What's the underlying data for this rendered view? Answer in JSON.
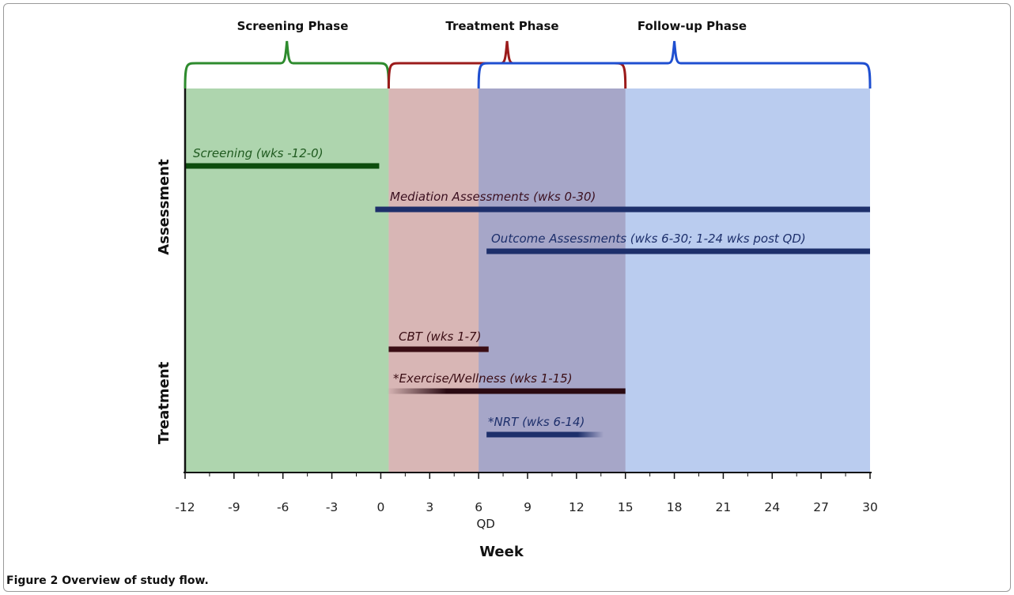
{
  "caption": {
    "text": "Figure 2 Overview of study flow."
  },
  "chart_data": {
    "type": "timeline",
    "xlabel": "Week",
    "x_ticks": [
      -12,
      -9,
      -6,
      -3,
      0,
      3,
      6,
      9,
      12,
      15,
      18,
      21,
      24,
      27,
      30
    ],
    "xlim": [
      -12,
      30
    ],
    "marker": {
      "label": "QD",
      "week": 6
    },
    "row_labels": [
      "Assessment",
      "Treatment"
    ],
    "phases": [
      {
        "name": "Screening Phase",
        "start": -12,
        "end": 0,
        "color": "#6bb36b",
        "bracket_color": "#2e8b2e"
      },
      {
        "name": "Treatment Phase",
        "start": 0,
        "end": 15,
        "color": "#b87a78",
        "bracket_color": "#9b1b1b"
      },
      {
        "name": "Follow-up Phase",
        "start": 6,
        "end": 30,
        "color": "#6f94de",
        "bracket_color": "#1f4fd0"
      }
    ],
    "bars": [
      {
        "label": "Screening (wks -12-0)",
        "start": -12,
        "end": 0,
        "row": "Assessment",
        "color": "#0d4d0d",
        "label_color": "#1f5a1f"
      },
      {
        "label": "Mediation Assessments (wks 0-30)",
        "start": 0,
        "end": 30,
        "row": "Assessment",
        "color": "#1d2f6b",
        "label_color": "#3b1020"
      },
      {
        "label": "Outcome Assessments (wks 6-30; 1-24 wks post QD)",
        "start": 6,
        "end": 30,
        "row": "Assessment",
        "color": "#1d2f6b",
        "label_color": "#1d2f6b"
      },
      {
        "label": "CBT (wks 1-7)",
        "start": 1,
        "end": 7,
        "row": "Treatment",
        "color": "#3a0d14",
        "label_color": "#3a0d14"
      },
      {
        "label": "*Exercise/Wellness (wks 1-15)",
        "start": 1,
        "end": 15,
        "row": "Treatment",
        "color": "#2a0a12",
        "label_color": "#3a0d14",
        "fade": "left"
      },
      {
        "label": "*NRT (wks 6-14)",
        "start": 6,
        "end": 14,
        "row": "Treatment",
        "color": "#1d2f6b",
        "label_color": "#1d2f6b",
        "fade": "right"
      }
    ]
  }
}
